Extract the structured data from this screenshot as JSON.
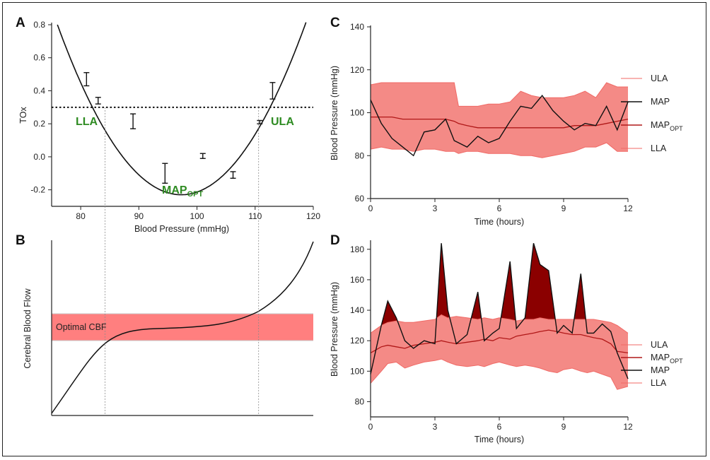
{
  "figure": {
    "panel_letters": [
      "A",
      "B",
      "C",
      "D"
    ]
  },
  "chart_data": [
    {
      "panel": "A",
      "type": "scatter",
      "xlabel": "Blood Pressure (mmHg)",
      "ylabel": "TOx",
      "xlim": [
        75,
        120
      ],
      "ylim": [
        -0.3,
        0.8
      ],
      "xticks": [
        "80",
        "90",
        "100",
        "110",
        "120"
      ],
      "xtick_values": [
        80,
        90,
        100,
        110,
        120
      ],
      "yticks": [
        "-0.2",
        "0.0",
        "0.2",
        "0.4",
        "0.6",
        "0.8"
      ],
      "ytick_values": [
        -0.2,
        0.0,
        0.2,
        0.4,
        0.6,
        0.8
      ],
      "threshold": 0.3,
      "curve": {
        "vertex_x": 97.3,
        "vertex_y": -0.23,
        "a": 0.00227
      },
      "points": [
        {
          "x": 81.0,
          "lo": 0.43,
          "hi": 0.51
        },
        {
          "x": 83.0,
          "lo": 0.32,
          "hi": 0.36
        },
        {
          "x": 89.0,
          "lo": 0.17,
          "hi": 0.26
        },
        {
          "x": 94.5,
          "lo": -0.16,
          "hi": -0.04
        },
        {
          "x": 101.0,
          "lo": -0.01,
          "hi": 0.02
        },
        {
          "x": 106.2,
          "lo": -0.13,
          "hi": -0.09
        },
        {
          "x": 110.8,
          "lo": 0.2,
          "hi": 0.22
        },
        {
          "x": 113.0,
          "lo": 0.35,
          "hi": 0.45
        }
      ],
      "lla_x": 84.2,
      "ula_x": 110.6,
      "annotations": {
        "lla": "LLA",
        "ula": "ULA",
        "map_opt_main": "MAP",
        "map_opt_sub": "OPT"
      }
    },
    {
      "panel": "B",
      "type": "line",
      "ylabel": "Cerebral Blood Flow",
      "band_label": "Optimal CBF"
    },
    {
      "panel": "C",
      "type": "area",
      "xlabel": "Time (hours)",
      "ylabel": "Blood Pressure (mmHg)",
      "xlim": [
        0,
        12
      ],
      "ylim": [
        60,
        140
      ],
      "xticks": [
        "0",
        "3",
        "6",
        "9",
        "12"
      ],
      "xtick_values": [
        0,
        3,
        6,
        9,
        12
      ],
      "yticks": [
        "60",
        "80",
        "100",
        "120",
        "140"
      ],
      "ytick_values": [
        60,
        80,
        100,
        120,
        140
      ],
      "legend": [
        "ULA",
        "MAP",
        "MAPOPT",
        "LLA"
      ],
      "legend_main": [
        "ULA",
        "MAP",
        "MAP",
        "LLA"
      ],
      "legend_sub": [
        "",
        "",
        "OPT",
        ""
      ],
      "t": [
        0,
        0.5,
        1,
        1.5,
        2,
        2.5,
        3,
        3.5,
        3.9,
        4.1,
        4.5,
        5,
        5.5,
        6,
        6.5,
        7,
        7.5,
        8,
        8.5,
        9,
        9.5,
        10,
        10.5,
        11,
        11.5,
        12
      ],
      "ula": [
        113,
        114,
        114,
        114,
        114,
        114,
        114,
        114,
        114,
        103,
        103,
        103,
        104,
        104,
        105,
        110,
        108,
        107,
        107,
        107,
        108,
        110,
        107,
        114,
        112,
        112
      ],
      "lla": [
        83,
        84,
        83,
        83,
        82,
        83,
        83,
        82,
        82,
        81,
        82,
        82,
        81,
        81,
        81,
        80,
        80,
        79,
        80,
        81,
        82,
        84,
        84,
        86,
        82,
        82
      ],
      "map_opt": [
        98,
        98,
        98,
        97,
        97,
        97,
        97,
        97,
        96,
        95,
        94,
        93,
        93,
        93,
        93,
        93,
        93,
        93,
        93,
        93,
        94,
        94,
        94,
        95,
        96,
        97
      ],
      "map": [
        106,
        95,
        88,
        84,
        80,
        91,
        92,
        97,
        87,
        86,
        84,
        89,
        86,
        88,
        96,
        103,
        102,
        108,
        101,
        96,
        92,
        95,
        94,
        103,
        92,
        105
      ]
    },
    {
      "panel": "D",
      "type": "area",
      "xlabel": "Time (hours)",
      "ylabel": "Blood Pressure (mmHg)",
      "xlim": [
        0,
        12
      ],
      "ylim": [
        70,
        185
      ],
      "xticks": [
        "0",
        "3",
        "6",
        "9",
        "12"
      ],
      "xtick_values": [
        0,
        3,
        6,
        9,
        12
      ],
      "yticks": [
        "80",
        "100",
        "120",
        "140",
        "160",
        "180"
      ],
      "ytick_values": [
        80,
        100,
        120,
        140,
        160,
        180
      ],
      "legend": [
        "ULA",
        "MAPOPT",
        "MAP",
        "LLA"
      ],
      "legend_main": [
        "ULA",
        "MAP",
        "MAP",
        "LLA"
      ],
      "legend_sub": [
        "",
        "OPT",
        "",
        ""
      ],
      "t": [
        0,
        0.5,
        0.8,
        1.2,
        1.6,
        2,
        2.5,
        3,
        3.3,
        3.6,
        4,
        4.5,
        5,
        5.3,
        5.7,
        6,
        6.5,
        6.8,
        7.2,
        7.6,
        7.9,
        8.3,
        8.7,
        9,
        9.4,
        9.8,
        10.1,
        10.4,
        10.8,
        11.2,
        11.5,
        12
      ],
      "ula": [
        125,
        130,
        132,
        133,
        132,
        132,
        133,
        134,
        137,
        135,
        136,
        135,
        134,
        135,
        134,
        135,
        134,
        133,
        134,
        134,
        135,
        134,
        134,
        134,
        134,
        134,
        134,
        134,
        133,
        132,
        130,
        125
      ],
      "lla": [
        92,
        100,
        105,
        106,
        102,
        104,
        106,
        107,
        108,
        106,
        104,
        103,
        104,
        103,
        105,
        106,
        104,
        103,
        104,
        103,
        102,
        100,
        99,
        101,
        102,
        100,
        99,
        100,
        98,
        96,
        88,
        90
      ],
      "map_opt": [
        112,
        116,
        117,
        116,
        115,
        117,
        118,
        119,
        120,
        119,
        118,
        119,
        120,
        121,
        120,
        122,
        121,
        123,
        124,
        125,
        126,
        127,
        126,
        125,
        124,
        124,
        123,
        122,
        121,
        118,
        113,
        112
      ],
      "map": [
        98,
        130,
        146,
        135,
        120,
        115,
        120,
        118,
        184,
        140,
        118,
        124,
        152,
        120,
        125,
        128,
        172,
        128,
        135,
        184,
        170,
        166,
        125,
        130,
        125,
        164,
        125,
        125,
        131,
        126,
        112,
        95
      ]
    }
  ]
}
